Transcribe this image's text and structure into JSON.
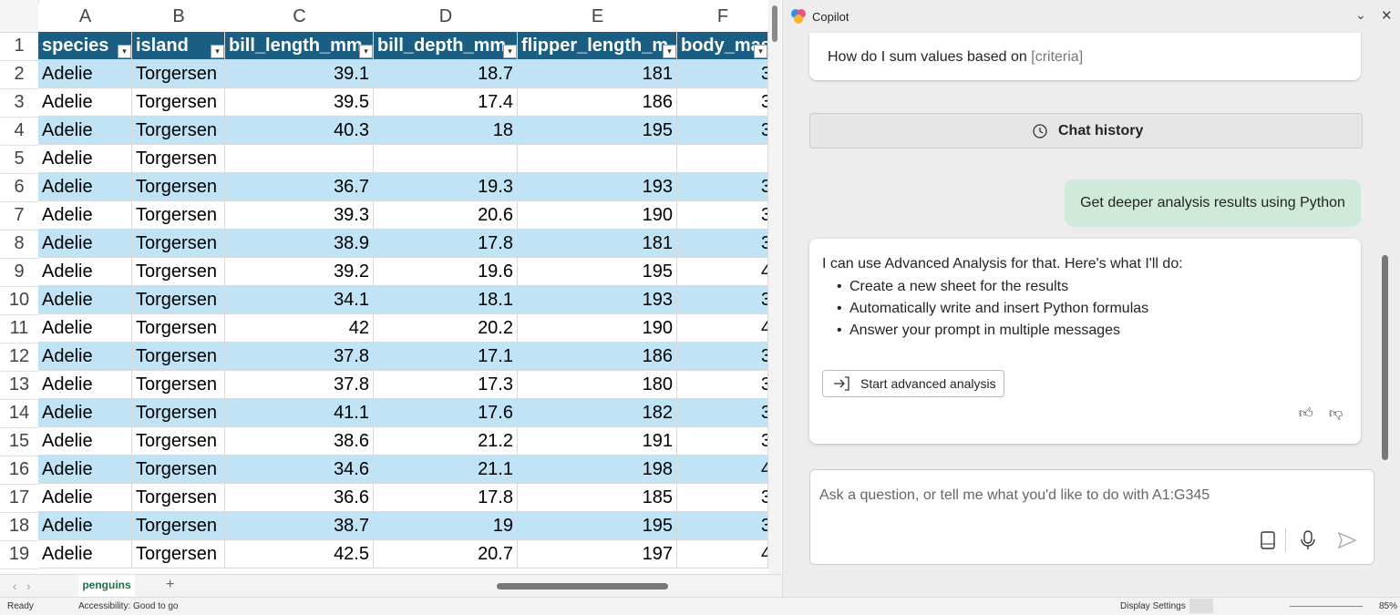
{
  "spreadsheet": {
    "column_letters": [
      "A",
      "B",
      "C",
      "D",
      "E",
      "F"
    ],
    "row_numbers": [
      1,
      2,
      3,
      4,
      5,
      6,
      7,
      8,
      9,
      10,
      11,
      12,
      13,
      14,
      15,
      16,
      17,
      18,
      19
    ],
    "header": [
      "species",
      "island",
      "bill_length_mm",
      "bill_depth_mm",
      "flipper_length_m",
      "body_mas"
    ],
    "rows": [
      [
        "Adelie",
        "Torgersen",
        39.1,
        18.7,
        181,
        3
      ],
      [
        "Adelie",
        "Torgersen",
        39.5,
        17.4,
        186,
        3
      ],
      [
        "Adelie",
        "Torgersen",
        40.3,
        18,
        195,
        3
      ],
      [
        "Adelie",
        "Torgersen",
        null,
        null,
        null,
        null
      ],
      [
        "Adelie",
        "Torgersen",
        36.7,
        19.3,
        193,
        3
      ],
      [
        "Adelie",
        "Torgersen",
        39.3,
        20.6,
        190,
        3
      ],
      [
        "Adelie",
        "Torgersen",
        38.9,
        17.8,
        181,
        3
      ],
      [
        "Adelie",
        "Torgersen",
        39.2,
        19.6,
        195,
        4
      ],
      [
        "Adelie",
        "Torgersen",
        34.1,
        18.1,
        193,
        3
      ],
      [
        "Adelie",
        "Torgersen",
        42,
        20.2,
        190,
        4
      ],
      [
        "Adelie",
        "Torgersen",
        37.8,
        17.1,
        186,
        3
      ],
      [
        "Adelie",
        "Torgersen",
        37.8,
        17.3,
        180,
        3
      ],
      [
        "Adelie",
        "Torgersen",
        41.1,
        17.6,
        182,
        3
      ],
      [
        "Adelie",
        "Torgersen",
        38.6,
        21.2,
        191,
        3
      ],
      [
        "Adelie",
        "Torgersen",
        34.6,
        21.1,
        198,
        4
      ],
      [
        "Adelie",
        "Torgersen",
        36.6,
        17.8,
        185,
        3
      ],
      [
        "Adelie",
        "Torgersen",
        38.7,
        19,
        195,
        3
      ],
      [
        "Adelie",
        "Torgersen",
        42.5,
        20.7,
        197,
        4
      ]
    ],
    "sheet_tab": "penguins"
  },
  "status_bar": {
    "ready": "Ready",
    "accessibility": "Accessibility: Good to go",
    "display_settings": "Display Settings",
    "zoom": "85%"
  },
  "copilot": {
    "title": "Copilot",
    "suggestion": "How do I sum values based on",
    "suggestion_placeholder": "[criteria]",
    "chat_history": "Chat history",
    "user_message": "Get deeper analysis results using Python",
    "response_intro": "I can use Advanced Analysis for that. Here's what I'll do:",
    "response_bullets": [
      "Create a new sheet for the results",
      "Automatically write and insert Python formulas",
      "Answer your prompt in multiple messages"
    ],
    "start_button": "Start advanced analysis",
    "input_placeholder": "Ask a question, or tell me what you'd like to do with A1:G345"
  }
}
